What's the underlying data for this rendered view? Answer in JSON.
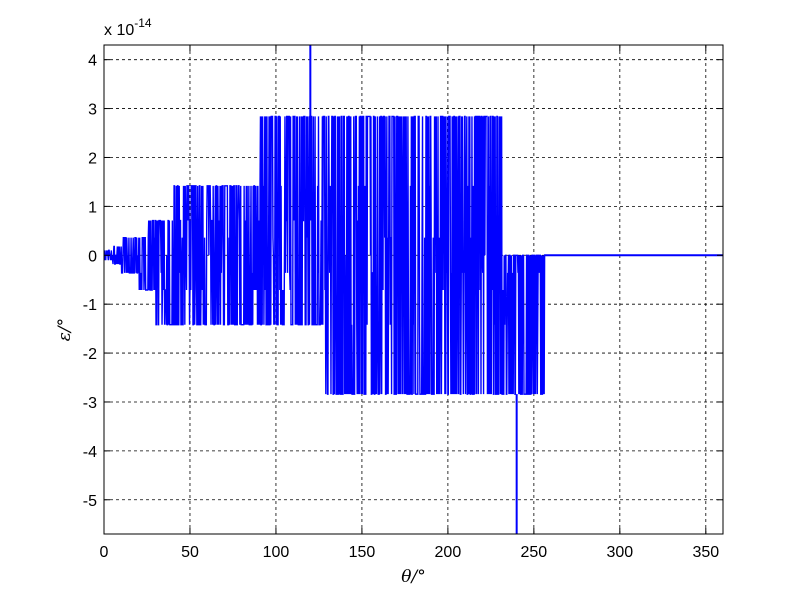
{
  "chart_data": {
    "type": "line",
    "title": "",
    "xlabel": "θ/°",
    "ylabel": "ε/°",
    "y_exponent_label": {
      "base": "x 10",
      "exp": "-14"
    },
    "xlim": [
      0,
      360
    ],
    "ylim": [
      -5.7,
      4.3
    ],
    "x_ticks": [
      0,
      50,
      100,
      150,
      200,
      250,
      300,
      350
    ],
    "y_ticks": [
      -5,
      -4,
      -3,
      -2,
      -1,
      0,
      1,
      2,
      3,
      4
    ],
    "grid": true,
    "series_color": "#0000ff",
    "levels": [
      -2.84,
      -1.42,
      -0.71,
      -0.36,
      0,
      0.36,
      0.71,
      1.42,
      2.84
    ],
    "envelope": [
      {
        "x_start": 0,
        "x_end": 5,
        "low": -0.1,
        "high": 0.1
      },
      {
        "x_start": 5,
        "x_end": 10,
        "low": -0.18,
        "high": 0.18
      },
      {
        "x_start": 10,
        "x_end": 15,
        "low": -0.36,
        "high": 0.36
      },
      {
        "x_start": 15,
        "x_end": 20,
        "low": -0.36,
        "high": 0.36
      },
      {
        "x_start": 20,
        "x_end": 25,
        "low": -0.71,
        "high": 0.36
      },
      {
        "x_start": 25,
        "x_end": 30,
        "low": -0.71,
        "high": 0.71
      },
      {
        "x_start": 30,
        "x_end": 40,
        "low": -1.42,
        "high": 0.71
      },
      {
        "x_start": 40,
        "x_end": 50,
        "low": -1.42,
        "high": 1.42
      },
      {
        "x_start": 50,
        "x_end": 90,
        "low": -1.42,
        "high": 1.42
      },
      {
        "x_start": 90,
        "x_end": 128,
        "low": -1.42,
        "high": 2.84
      },
      {
        "x_start": 128,
        "x_end": 232,
        "low": -2.84,
        "high": 2.84
      },
      {
        "x_start": 232,
        "x_end": 256,
        "low": -2.84,
        "high": 0
      },
      {
        "x_start": 256,
        "x_end": 360,
        "low": 0,
        "high": 0
      }
    ],
    "spikes": [
      {
        "x": 120,
        "low": 2.84,
        "high": 4.3
      },
      {
        "x": 240,
        "low": -5.7,
        "high": -2.84
      }
    ]
  }
}
